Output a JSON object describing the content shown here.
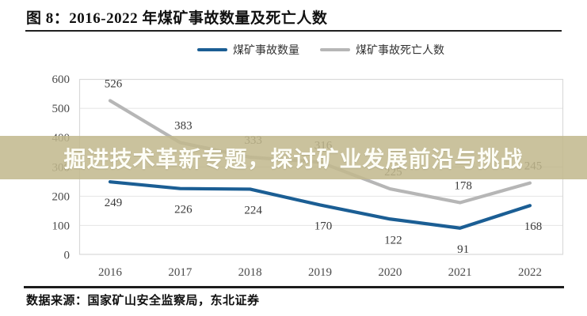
{
  "figure": {
    "title": "图 8：2016-2022 年煤矿事故数量及死亡人数",
    "source": "数据来源：国家矿山安全监察局，东北证券"
  },
  "overlay": {
    "text": "掘进技术革新专题，探讨矿业发展前沿与挑战",
    "background_color": "#c1b88d",
    "text_color": "#fdfdf6"
  },
  "chart_data": {
    "type": "line",
    "title": "2016-2022 年煤矿事故数量及死亡人数",
    "categories": [
      "2016",
      "2017",
      "2018",
      "2019",
      "2020",
      "2021",
      "2022"
    ],
    "series": [
      {
        "name": "煤矿事故数量",
        "color": "#1b5e94",
        "values": [
          249,
          226,
          224,
          170,
          122,
          91,
          168
        ],
        "label_side": "below"
      },
      {
        "name": "煤矿事故死亡人数",
        "color": "#b6b6b6",
        "values": [
          526,
          383,
          333,
          316,
          225,
          178,
          245
        ],
        "label_side": "above"
      }
    ],
    "ylim": [
      0,
      600
    ],
    "yticks": [
      0,
      100,
      200,
      300,
      400,
      500,
      600
    ],
    "grid": true,
    "legend_position": "top",
    "xlabel": "",
    "ylabel": ""
  },
  "style_colors": {
    "gridline": "#e4e4e4",
    "plot_border": "#d9d9d9",
    "tick_label": "#4a4a4a",
    "data_label": "#3a3a3a"
  }
}
